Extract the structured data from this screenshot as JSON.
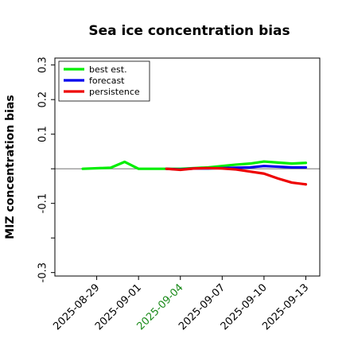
{
  "chart_data": {
    "type": "line",
    "title": "Sea ice concentration bias",
    "xlabel": "",
    "ylabel": "MIZ concentration bias",
    "ylim": [
      -0.31,
      0.32
    ],
    "xlim": [
      "2025-08-26",
      "2025-09-14"
    ],
    "yticks": [
      -0.3,
      -0.1,
      0.1,
      0.2,
      0.3
    ],
    "ytick_labels": [
      "-0.3",
      "-0.1",
      "0.1",
      "0.2",
      "0.3"
    ],
    "ytick_marks_unlabeled": [
      -0.2,
      0.0
    ],
    "xticks": [
      "2025-08-29",
      "2025-09-01",
      "2025-09-04",
      "2025-09-07",
      "2025-09-10",
      "2025-09-13"
    ],
    "xtick_colors": [
      "#000000",
      "#000000",
      "#1a8a1a",
      "#000000",
      "#000000",
      "#000000"
    ],
    "zero_line": true,
    "grid": false,
    "legend_position": "top-left",
    "series": [
      {
        "name": "best est.",
        "color": "#00ee00",
        "x": [
          "2025-08-28",
          "2025-08-30",
          "2025-08-31",
          "2025-09-01",
          "2025-09-02",
          "2025-09-03",
          "2025-09-04",
          "2025-09-05",
          "2025-09-06",
          "2025-09-07",
          "2025-09-08",
          "2025-09-09",
          "2025-09-10",
          "2025-09-11",
          "2025-09-12",
          "2025-09-13"
        ],
        "values": [
          0.0,
          0.003,
          0.02,
          0.0,
          0.0,
          0.0,
          0.0,
          0.002,
          0.004,
          0.008,
          0.012,
          0.015,
          0.021,
          0.018,
          0.015,
          0.017
        ]
      },
      {
        "name": "forecast",
        "color": "#0000ee",
        "x": [
          "2025-09-03",
          "2025-09-04",
          "2025-09-05",
          "2025-09-06",
          "2025-09-07",
          "2025-09-08",
          "2025-09-09",
          "2025-09-10",
          "2025-09-11",
          "2025-09-12",
          "2025-09-13"
        ],
        "values": [
          0.0,
          -0.002,
          0.001,
          0.001,
          0.002,
          0.003,
          0.004,
          0.008,
          0.006,
          0.004,
          0.004
        ]
      },
      {
        "name": "persistence",
        "color": "#ee0000",
        "x": [
          "2025-09-03",
          "2025-09-04",
          "2025-09-05",
          "2025-09-06",
          "2025-09-07",
          "2025-09-08",
          "2025-09-09",
          "2025-09-10",
          "2025-09-11",
          "2025-09-12",
          "2025-09-13"
        ],
        "values": [
          0.0,
          -0.003,
          0.001,
          0.002,
          0.001,
          -0.002,
          -0.008,
          -0.014,
          -0.028,
          -0.04,
          -0.045
        ]
      }
    ]
  }
}
